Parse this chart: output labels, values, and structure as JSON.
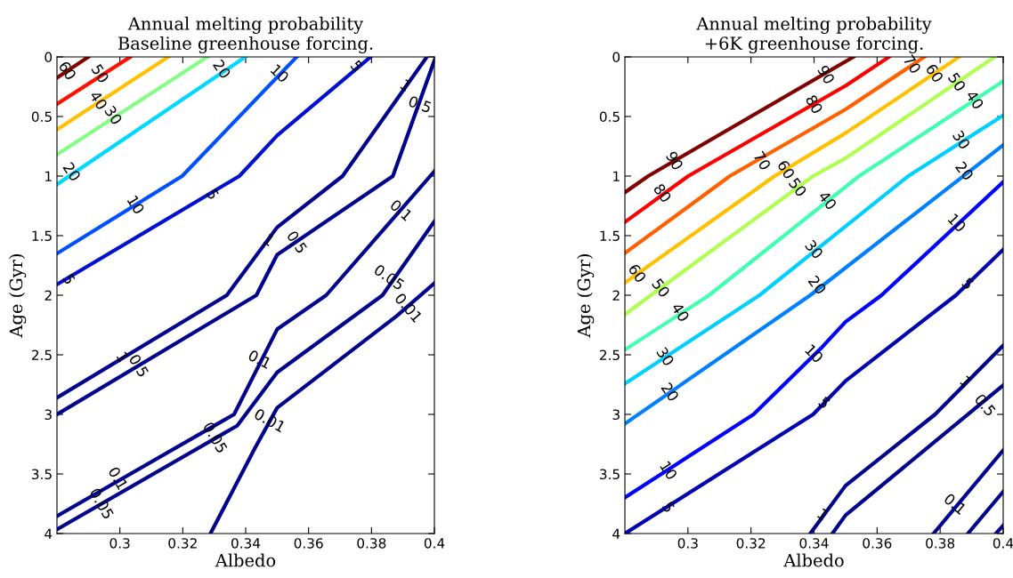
{
  "chart_data": [
    {
      "type": "line",
      "title": "Annual melting probability\nBaseline greenhouse forcing.",
      "xlabel": "Albedo",
      "ylabel": "Age (Gyr)",
      "xlim": [
        0.28,
        0.4
      ],
      "ylim": [
        4,
        0
      ],
      "xticks": [
        0.3,
        0.32,
        0.34,
        0.36,
        0.38,
        0.4
      ],
      "yticks": [
        0,
        0.5,
        1,
        1.5,
        2,
        2.5,
        3,
        3.5,
        4
      ],
      "marker": "none",
      "line_style": "solid",
      "legend": false,
      "series": [
        {
          "color": "#800000",
          "x": [
            0.28,
            0.29
          ],
          "values": [
            0.175,
            0
          ]
        },
        {
          "color": "#ff1000",
          "x": [
            0.28,
            0.3033
          ],
          "values": [
            0.395,
            0
          ]
        },
        {
          "color": "#ffc000",
          "x": [
            0.28,
            0.3154
          ],
          "values": [
            0.61,
            0
          ]
        },
        {
          "color": "#80ff80",
          "x": [
            0.28,
            0.3278
          ],
          "values": [
            0.82,
            0
          ]
        },
        {
          "color": "#00d8ff",
          "x": [
            0.28,
            0.3399
          ],
          "values": [
            1.07,
            0
          ]
        },
        {
          "color": "#0050ff",
          "x": [
            0.28,
            0.3198,
            0.3562
          ],
          "values": [
            1.65,
            1.0,
            0
          ]
        },
        {
          "color": "#0010d0",
          "x": [
            0.28,
            0.338,
            0.35,
            0.3797
          ],
          "values": [
            1.91,
            1.0,
            0.66,
            0
          ]
        },
        {
          "color": "#00008f",
          "x": [
            0.28,
            0.334,
            0.35,
            0.3708,
            0.3976
          ],
          "values": [
            2.86,
            2.0,
            1.43,
            1.0,
            0
          ]
        },
        {
          "color": "#00008f",
          "x": [
            0.28,
            0.3434,
            0.35,
            0.3868,
            0.4
          ],
          "values": [
            3.0,
            2.0,
            1.66,
            1.0,
            0.03
          ]
        },
        {
          "color": "#00008f",
          "x": [
            0.28,
            0.3363,
            0.35,
            0.3656,
            0.4
          ],
          "values": [
            3.853,
            3.0,
            2.286,
            2.0,
            0.96
          ]
        },
        {
          "color": "#00008f",
          "x": [
            0.28,
            0.3373,
            0.35,
            0.3835,
            0.4
          ],
          "values": [
            3.965,
            3.095,
            2.647,
            2.0,
            1.38
          ]
        },
        {
          "color": "#00008f",
          "x": [
            0.3288,
            0.343,
            0.35,
            0.388,
            0.4
          ],
          "values": [
            4.0,
            3.28,
            2.945,
            2.174,
            1.9
          ]
        }
      ],
      "annotations": [
        {
          "text": "60",
          "x": 0.283,
          "y": 0.12
        },
        {
          "text": "50",
          "x": 0.2934,
          "y": 0.145
        },
        {
          "text": "40",
          "x": 0.2929,
          "y": 0.37
        },
        {
          "text": "30",
          "x": 0.2976,
          "y": 0.495
        },
        {
          "text": "20",
          "x": 0.3321,
          "y": 0.108
        },
        {
          "text": "20",
          "x": 0.2844,
          "y": 0.97
        },
        {
          "text": "10",
          "x": 0.3505,
          "y": 0.145
        },
        {
          "text": "10",
          "x": 0.3047,
          "y": 1.245
        },
        {
          "text": "5",
          "x": 0.375,
          "y": 0.083
        },
        {
          "text": "5",
          "x": 0.3292,
          "y": 1.158
        },
        {
          "text": "5",
          "x": 0.2835,
          "y": 1.87
        },
        {
          "text": "1",
          "x": 0.3906,
          "y": 0.245
        },
        {
          "text": "1",
          "x": 0.3472,
          "y": 1.545
        },
        {
          "text": "1",
          "x": 0.3005,
          "y": 2.522
        },
        {
          "text": "0.5",
          "x": 0.3953,
          "y": 0.408
        },
        {
          "text": "0.5",
          "x": 0.356,
          "y": 1.56
        },
        {
          "text": "0.5",
          "x": 0.3057,
          "y": 2.597
        },
        {
          "text": "0.1",
          "x": 0.3892,
          "y": 1.295
        },
        {
          "text": "0.1",
          "x": 0.3443,
          "y": 2.547
        },
        {
          "text": "0.1",
          "x": 0.2991,
          "y": 3.542
        },
        {
          "text": "0.05",
          "x": 0.3854,
          "y": 1.858
        },
        {
          "text": "0.05",
          "x": 0.33,
          "y": 3.2
        },
        {
          "text": "0.05",
          "x": 0.2939,
          "y": 3.754
        },
        {
          "text": "0.01",
          "x": 0.3915,
          "y": 2.112
        },
        {
          "text": "0.01",
          "x": 0.3475,
          "y": 3.06
        }
      ]
    },
    {
      "type": "line",
      "title": "Annual melting probability\n+6K greenhouse forcing.",
      "xlabel": "Albedo",
      "ylabel": "Age (Gyr)",
      "xlim": [
        0.28,
        0.4
      ],
      "ylim": [
        4,
        0
      ],
      "xticks": [
        0.3,
        0.32,
        0.34,
        0.36,
        0.38,
        0.4
      ],
      "yticks": [
        0,
        0.5,
        1,
        1.5,
        2,
        2.5,
        3,
        3.5,
        4
      ],
      "marker": "none",
      "line_style": "solid",
      "legend": false,
      "series": [
        {
          "color": "#800000",
          "x": [
            0.28,
            0.2874,
            0.3525
          ],
          "values": [
            1.137,
            1.0,
            0
          ]
        },
        {
          "color": "#ff0000",
          "x": [
            0.28,
            0.3001,
            0.3501,
            0.3638
          ],
          "values": [
            1.386,
            1.0,
            0.241,
            0
          ]
        },
        {
          "color": "#ff6000",
          "x": [
            0.28,
            0.3133,
            0.35,
            0.375
          ],
          "values": [
            1.647,
            1.0,
            0.44,
            0
          ]
        },
        {
          "color": "#ffc000",
          "x": [
            0.28,
            0.3275,
            0.35,
            0.386
          ],
          "values": [
            1.896,
            1.0,
            0.639,
            0
          ]
        },
        {
          "color": "#b0ff50",
          "x": [
            0.28,
            0.3397,
            0.35,
            0.3973
          ],
          "values": [
            2.161,
            1.0,
            0.85,
            0
          ]
        },
        {
          "color": "#40ffb0",
          "x": [
            0.28,
            0.3067,
            0.3543,
            0.4
          ],
          "values": [
            2.458,
            2.0,
            1.0,
            0.204
          ]
        },
        {
          "color": "#00d0ff",
          "x": [
            0.28,
            0.3227,
            0.3699,
            0.4
          ],
          "values": [
            2.743,
            2.0,
            1.0,
            0.49
          ]
        },
        {
          "color": "#0080ff",
          "x": [
            0.28,
            0.3388,
            0.4
          ],
          "values": [
            3.078,
            2.0,
            0.739
          ]
        },
        {
          "color": "#0000ff",
          "x": [
            0.28,
            0.3208,
            0.3426,
            0.35,
            0.3614,
            0.4
          ],
          "values": [
            3.698,
            3.0,
            2.434,
            2.223,
            2.0,
            1.05
          ]
        },
        {
          "color": "#0000b0",
          "x": [
            0.28,
            0.3397,
            0.35,
            0.385,
            0.4
          ],
          "values": [
            4.0,
            3.0,
            2.719,
            2.0,
            1.617
          ]
        },
        {
          "color": "#00008f",
          "x": [
            0.3388,
            0.35,
            0.3784,
            0.4
          ],
          "values": [
            4.0,
            3.598,
            3.0,
            2.421
          ]
        },
        {
          "color": "#00008f",
          "x": [
            0.3458,
            0.35,
            0.4
          ],
          "values": [
            4.0,
            3.846,
            2.756
          ]
        },
        {
          "color": "#00008f",
          "x": [
            0.3779,
            0.4
          ],
          "values": [
            4.0,
            3.301
          ]
        },
        {
          "color": "#00008f",
          "x": [
            0.3888,
            0.4
          ],
          "values": [
            4.0,
            3.648
          ]
        },
        {
          "color": "#00008f",
          "x": [
            0.3977,
            0.4
          ],
          "values": [
            4.0,
            3.933
          ]
        }
      ],
      "annotations": [
        {
          "text": "90",
          "x": 0.2954,
          "y": 0.876
        },
        {
          "text": "90",
          "x": 0.3435,
          "y": 0.154
        },
        {
          "text": "80",
          "x": 0.2916,
          "y": 1.149
        },
        {
          "text": "80",
          "x": 0.3397,
          "y": 0.403
        },
        {
          "text": "70",
          "x": 0.3232,
          "y": 0.876
        },
        {
          "text": "70",
          "x": 0.3708,
          "y": 0.067
        },
        {
          "text": "60",
          "x": 0.3308,
          "y": 0.95
        },
        {
          "text": "60",
          "x": 0.3779,
          "y": 0.142
        },
        {
          "text": "60",
          "x": 0.2836,
          "y": 1.821
        },
        {
          "text": "50",
          "x": 0.3345,
          "y": 1.1
        },
        {
          "text": "50",
          "x": 0.385,
          "y": 0.216
        },
        {
          "text": "50",
          "x": 0.2911,
          "y": 1.945
        },
        {
          "text": "40",
          "x": 0.344,
          "y": 1.211
        },
        {
          "text": "40",
          "x": 0.3907,
          "y": 0.366
        },
        {
          "text": "40",
          "x": 0.2973,
          "y": 2.149
        },
        {
          "text": "30",
          "x": 0.3397,
          "y": 1.622
        },
        {
          "text": "30",
          "x": 0.3864,
          "y": 0.701
        },
        {
          "text": "30",
          "x": 0.2925,
          "y": 2.52
        },
        {
          "text": "20",
          "x": 0.3407,
          "y": 1.92
        },
        {
          "text": "20",
          "x": 0.3874,
          "y": 0.963
        },
        {
          "text": "20",
          "x": 0.294,
          "y": 2.818
        },
        {
          "text": "10",
          "x": 0.385,
          "y": 1.398
        },
        {
          "text": "10",
          "x": 0.3397,
          "y": 2.496
        },
        {
          "text": "10",
          "x": 0.2935,
          "y": 3.475
        },
        {
          "text": "5",
          "x": 0.3885,
          "y": 1.91
        },
        {
          "text": "5",
          "x": 0.343,
          "y": 2.91
        },
        {
          "text": "5",
          "x": 0.2935,
          "y": 3.784
        },
        {
          "text": "1",
          "x": 0.3878,
          "y": 2.731
        },
        {
          "text": "1",
          "x": 0.3425,
          "y": 3.846
        },
        {
          "text": "0.5",
          "x": 0.394,
          "y": 2.929
        },
        {
          "text": "0.1",
          "x": 0.3845,
          "y": 3.76
        }
      ]
    }
  ]
}
